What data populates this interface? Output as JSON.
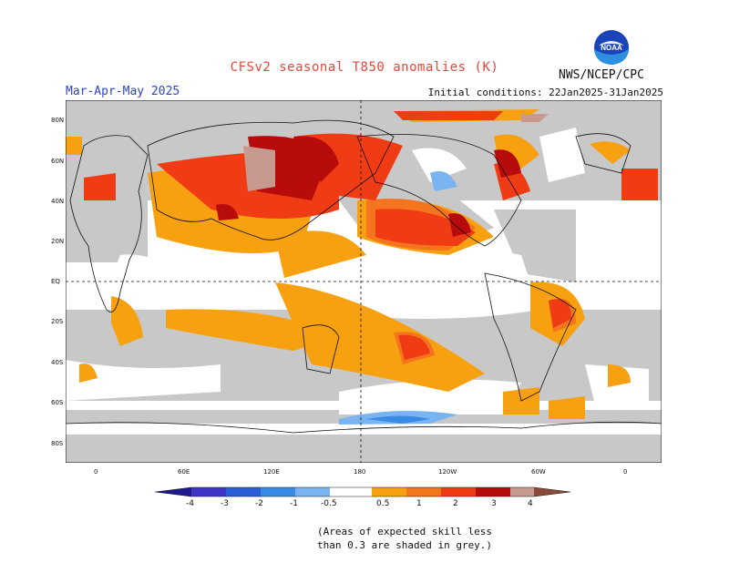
{
  "title": "CFSv2 seasonal T850 anomalies (K)",
  "period": "Mar-Apr-May 2025",
  "initial_conditions": "Initial conditions: 22Jan2025-31Jan2025",
  "agency": "NWS/NCEP/CPC",
  "logo_text": "NOAA",
  "lat_labels": [
    "80N",
    "60N",
    "40N",
    "20N",
    "EQ",
    "20S",
    "40S",
    "60S",
    "80S"
  ],
  "lon_labels": [
    "0",
    "60E",
    "120E",
    "180",
    "120W",
    "60W",
    "0"
  ],
  "colorbar": {
    "labels": [
      "-4",
      "-3",
      "-2",
      "-1",
      "-0.5",
      "0.5",
      "1",
      "2",
      "3",
      "4"
    ],
    "colors": [
      "#1e1a8c",
      "#3e34c8",
      "#2b5fd8",
      "#3a8be6",
      "#79b3f0",
      "#ffffff",
      "#f7a010",
      "#f5741e",
      "#f03c14",
      "#b80c0c",
      "#c8998f",
      "#8a4a3a"
    ]
  },
  "note": [
    "(Areas of expected skill less",
    "than 0.3 are shaded in grey.)"
  ],
  "colors": {
    "grey": "#c8c8c8",
    "orange": "#f7a010",
    "red_orange": "#f5741e",
    "red": "#f03c14",
    "dark_red": "#b80c0c",
    "pink": "#c8998f",
    "light_blue": "#79b3f0",
    "blue": "#3a8be6"
  }
}
